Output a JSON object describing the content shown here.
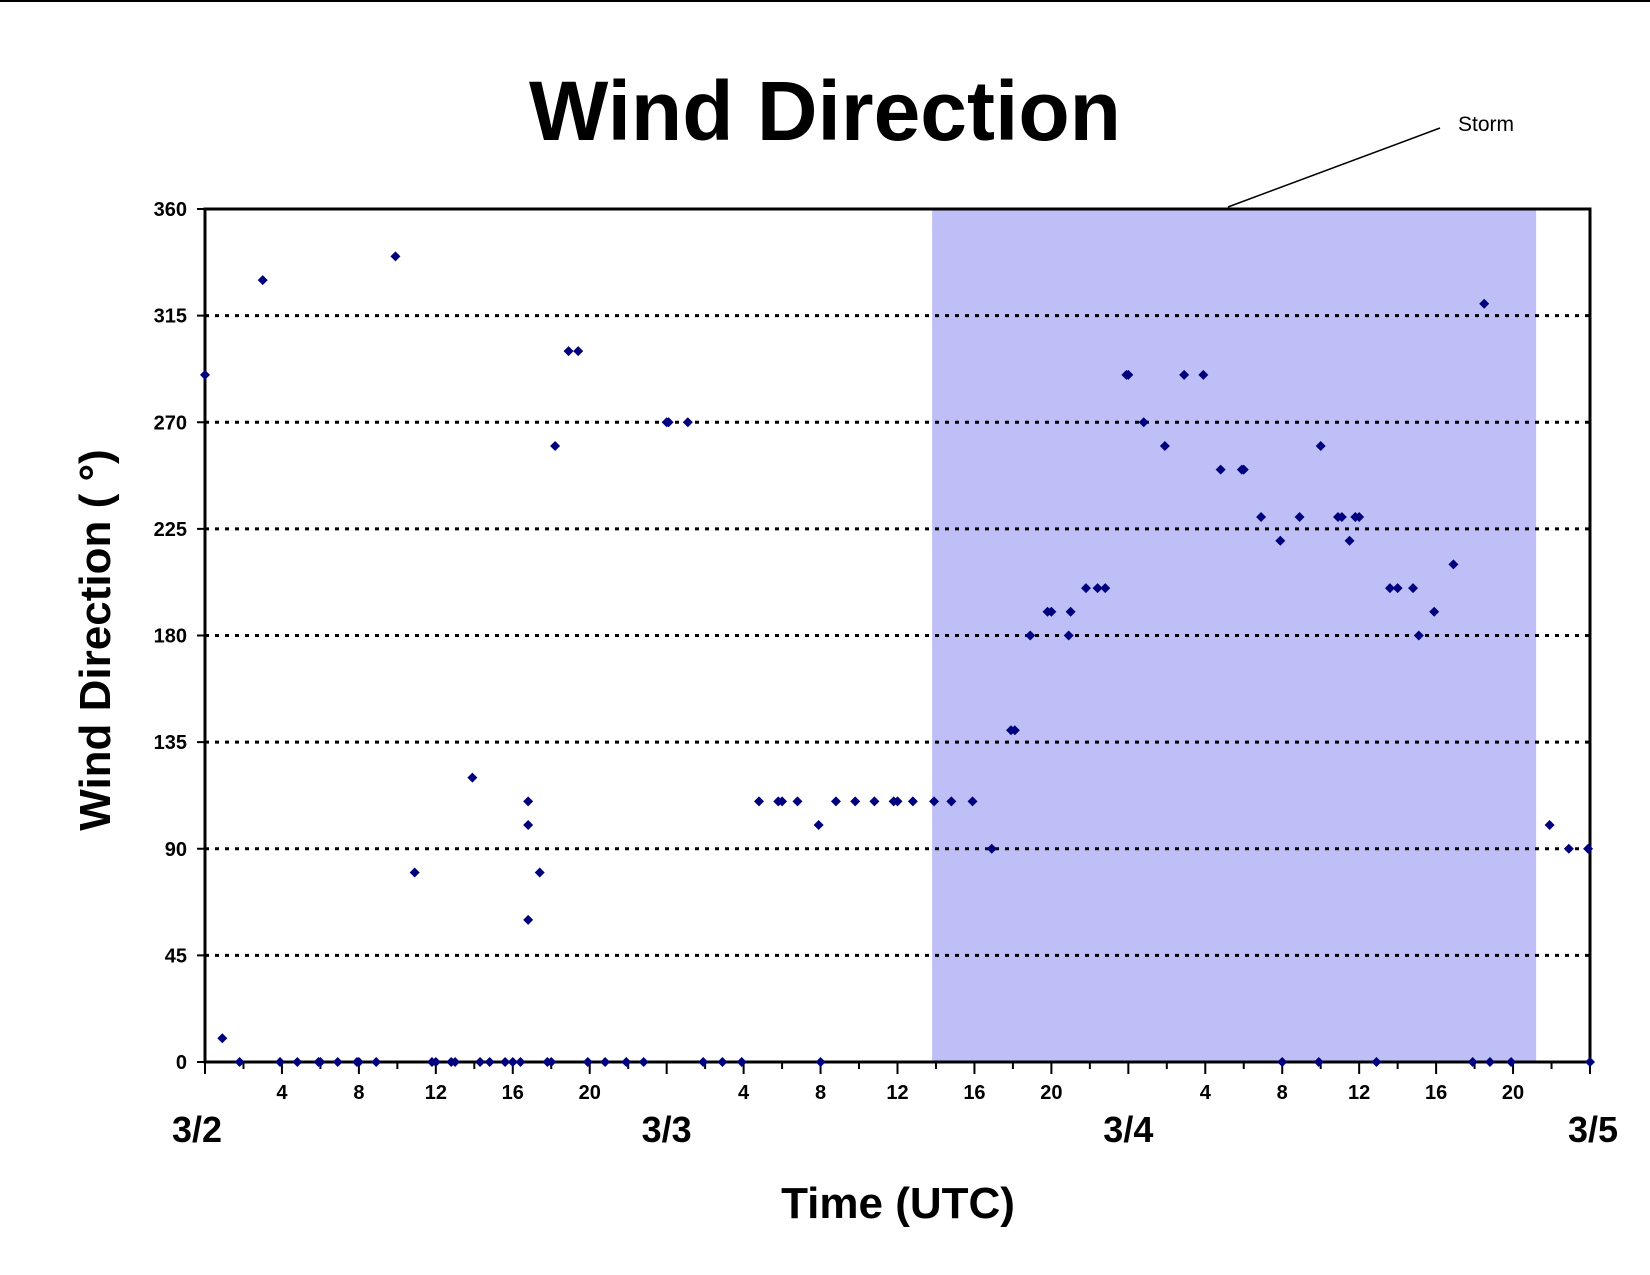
{
  "chart_data": {
    "type": "scatter",
    "title": "Wind Direction",
    "xlabel": "Time (UTC)",
    "ylabel": "Wind Direction ( °)",
    "ylim": [
      0,
      360
    ],
    "xlim_hours": [
      0,
      72
    ],
    "yticks": [
      0,
      45,
      90,
      135,
      180,
      225,
      270,
      315,
      360
    ],
    "grid": "horizontal dotted",
    "marker_color": "#00007f",
    "xticks": [
      {
        "h": 4,
        "label": "4"
      },
      {
        "h": 8,
        "label": "8"
      },
      {
        "h": 12,
        "label": "12"
      },
      {
        "h": 16,
        "label": "16"
      },
      {
        "h": 20,
        "label": "20"
      },
      {
        "h": 28,
        "label": "4"
      },
      {
        "h": 32,
        "label": "8"
      },
      {
        "h": 36,
        "label": "12"
      },
      {
        "h": 40,
        "label": "16"
      },
      {
        "h": 44,
        "label": "20"
      },
      {
        "h": 52,
        "label": "4"
      },
      {
        "h": 56,
        "label": "8"
      },
      {
        "h": 60,
        "label": "12"
      },
      {
        "h": 64,
        "label": "16"
      },
      {
        "h": 68,
        "label": "20"
      }
    ],
    "day_labels": [
      {
        "h": 0,
        "label": "3/2"
      },
      {
        "h": 24,
        "label": "3/3"
      },
      {
        "h": 48,
        "label": "3/4"
      },
      {
        "h": 72,
        "label": "3/5"
      }
    ],
    "shaded_region": {
      "start_h": 37.8,
      "end_h": 69.2,
      "label": "Storm",
      "color": "#bfbff8"
    },
    "points": [
      [
        0,
        290
      ],
      [
        0.9,
        10
      ],
      [
        1.8,
        0
      ],
      [
        3,
        330
      ],
      [
        3.9,
        0
      ],
      [
        4.8,
        0
      ],
      [
        5.9,
        0
      ],
      [
        6,
        0
      ],
      [
        6.9,
        0
      ],
      [
        7.9,
        0
      ],
      [
        8,
        0
      ],
      [
        8.9,
        0
      ],
      [
        9.9,
        340
      ],
      [
        10.9,
        80
      ],
      [
        11.8,
        0
      ],
      [
        12,
        0
      ],
      [
        12.8,
        0
      ],
      [
        13,
        0
      ],
      [
        13.9,
        120
      ],
      [
        14.3,
        0
      ],
      [
        14.8,
        0
      ],
      [
        15.6,
        0
      ],
      [
        16,
        0
      ],
      [
        16.4,
        0
      ],
      [
        16.8,
        110
      ],
      [
        16.8,
        60
      ],
      [
        16.8,
        100
      ],
      [
        17.4,
        80
      ],
      [
        17.8,
        0
      ],
      [
        18,
        0
      ],
      [
        18.2,
        260
      ],
      [
        18.9,
        300
      ],
      [
        19.4,
        300
      ],
      [
        19.9,
        0
      ],
      [
        20.8,
        0
      ],
      [
        21.9,
        0
      ],
      [
        22.8,
        0
      ],
      [
        24,
        270
      ],
      [
        24.1,
        270
      ],
      [
        25.1,
        270
      ],
      [
        25.9,
        0
      ],
      [
        26.9,
        0
      ],
      [
        27.9,
        0
      ],
      [
        28.8,
        110
      ],
      [
        29.8,
        110
      ],
      [
        30,
        110
      ],
      [
        30.8,
        110
      ],
      [
        31.9,
        100
      ],
      [
        32,
        0
      ],
      [
        32.8,
        110
      ],
      [
        33.8,
        110
      ],
      [
        34.8,
        110
      ],
      [
        35.8,
        110
      ],
      [
        36,
        110
      ],
      [
        36.8,
        110
      ],
      [
        37.9,
        110
      ],
      [
        38.8,
        110
      ],
      [
        39.9,
        110
      ],
      [
        40.9,
        90
      ],
      [
        41.9,
        140
      ],
      [
        42.1,
        140
      ],
      [
        42.9,
        180
      ],
      [
        43.8,
        190
      ],
      [
        44,
        190
      ],
      [
        44.9,
        180
      ],
      [
        45,
        190
      ],
      [
        45.8,
        200
      ],
      [
        46.4,
        200
      ],
      [
        46.8,
        200
      ],
      [
        47.9,
        290
      ],
      [
        48,
        290
      ],
      [
        48.8,
        270
      ],
      [
        49.9,
        260
      ],
      [
        50.9,
        290
      ],
      [
        51.9,
        290
      ],
      [
        52.8,
        250
      ],
      [
        53.9,
        250
      ],
      [
        54,
        250
      ],
      [
        54.9,
        230
      ],
      [
        55.9,
        220
      ],
      [
        56,
        0
      ],
      [
        56.9,
        230
      ],
      [
        57.9,
        0
      ],
      [
        58,
        260
      ],
      [
        58.9,
        230
      ],
      [
        59.1,
        230
      ],
      [
        59.5,
        220
      ],
      [
        59.8,
        230
      ],
      [
        60,
        230
      ],
      [
        60.9,
        0
      ],
      [
        61.6,
        200
      ],
      [
        62,
        200
      ],
      [
        62.8,
        200
      ],
      [
        63.1,
        180
      ],
      [
        63.9,
        190
      ],
      [
        64.9,
        210
      ],
      [
        65.9,
        0
      ],
      [
        66.5,
        320
      ],
      [
        66.8,
        0
      ],
      [
        67.9,
        0
      ],
      [
        69.9,
        100
      ],
      [
        70.9,
        90
      ],
      [
        71.9,
        90
      ],
      [
        72,
        0
      ]
    ]
  }
}
